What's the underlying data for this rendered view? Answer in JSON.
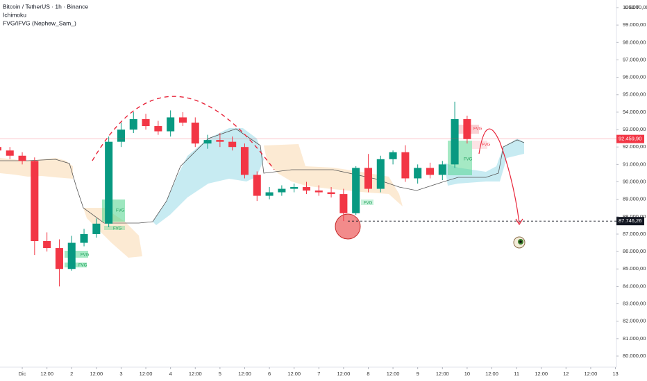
{
  "chart_data": {
    "type": "candlestick",
    "title": "Bitcoin / TetherUS · 1h · Binance",
    "indicators": [
      "Ichimoku",
      "FVG/IFVG (Nephew_Sam_)"
    ],
    "currency": "USDT",
    "up_color": "#089981",
    "down_color": "#f23645",
    "x": [
      -12,
      -6,
      0,
      6,
      12,
      18,
      24,
      30,
      36,
      42,
      48,
      54,
      60,
      66,
      72,
      78,
      84,
      90,
      96,
      102,
      108,
      114,
      120,
      126,
      132,
      138,
      144,
      150,
      156,
      162,
      168,
      174,
      180,
      186,
      192,
      198,
      204,
      210,
      216
    ],
    "open": [
      92000,
      91800,
      91500,
      91200,
      86600,
      86200,
      85000,
      86500,
      87000,
      87600,
      92300,
      93000,
      93600,
      93200,
      92900,
      93700,
      93400,
      92200,
      92400,
      92300,
      92000,
      90400,
      89200,
      89400,
      89600,
      89700,
      89500,
      89400,
      89300,
      88200,
      90800,
      89600,
      91300,
      91700,
      90200,
      90800,
      90400,
      91000,
      93600
    ],
    "high": [
      92200,
      92000,
      91700,
      91400,
      87100,
      86700,
      86900,
      87300,
      87900,
      92600,
      93400,
      94000,
      93900,
      93500,
      94100,
      94000,
      93700,
      92700,
      92800,
      92600,
      92200,
      90600,
      89700,
      89800,
      89900,
      90000,
      89800,
      89700,
      89600,
      90900,
      91600,
      91500,
      91800,
      92100,
      91000,
      91100,
      91200,
      94600,
      93800
    ],
    "low": [
      91600,
      91300,
      91000,
      85800,
      86000,
      84000,
      84900,
      86300,
      86800,
      87400,
      92000,
      92800,
      93000,
      92700,
      92600,
      93200,
      92000,
      91900,
      92000,
      91800,
      90200,
      88900,
      89000,
      89200,
      89400,
      89300,
      89200,
      89100,
      87750,
      88100,
      89400,
      89400,
      91000,
      90000,
      89900,
      90200,
      90100,
      90800,
      92200
    ],
    "close": [
      91800,
      91500,
      91200,
      86600,
      86200,
      85000,
      86500,
      87000,
      87600,
      92300,
      93000,
      93600,
      93200,
      92900,
      93700,
      93400,
      92200,
      92400,
      92300,
      92000,
      90400,
      89200,
      89400,
      89600,
      89700,
      89500,
      89400,
      89300,
      88200,
      90800,
      89600,
      91300,
      91700,
      90200,
      90800,
      90400,
      91000,
      93600,
      92460
    ],
    "xlim": [
      -10.8,
      288.5
    ],
    "xticks": [
      {
        "value": 0,
        "label": "Dic"
      },
      {
        "value": 12,
        "label": "12:00"
      },
      {
        "value": 24,
        "label": "2"
      },
      {
        "value": 36,
        "label": "12:00"
      },
      {
        "value": 48,
        "label": "3"
      },
      {
        "value": 60,
        "label": "12:00"
      },
      {
        "value": 72,
        "label": "4"
      },
      {
        "value": 84,
        "label": "12:00"
      },
      {
        "value": 96,
        "label": "5"
      },
      {
        "value": 108,
        "label": "12:00"
      },
      {
        "value": 120,
        "label": "6"
      },
      {
        "value": 132,
        "label": "12:00"
      },
      {
        "value": 144,
        "label": "7"
      },
      {
        "value": 156,
        "label": "12:00"
      },
      {
        "value": 168,
        "label": "8"
      },
      {
        "value": 180,
        "label": "12:00"
      },
      {
        "value": 192,
        "label": "9"
      },
      {
        "value": 204,
        "label": "12:00"
      },
      {
        "value": 216,
        "label": "10"
      },
      {
        "value": 228,
        "label": "12:00"
      },
      {
        "value": 240,
        "label": "11"
      },
      {
        "value": 252,
        "label": "12:00"
      },
      {
        "value": 264,
        "label": "12"
      },
      {
        "value": 276,
        "label": "12:00"
      },
      {
        "value": 288,
        "label": "13"
      }
    ],
    "ylim": [
      79650,
      100450
    ],
    "yticks": [
      {
        "value": 80000,
        "label": "80.000,00"
      },
      {
        "value": 81000,
        "label": "81.000,00"
      },
      {
        "value": 82000,
        "label": "82.000,00"
      },
      {
        "value": 83000,
        "label": "83.000,00"
      },
      {
        "value": 84000,
        "label": "84.000,00"
      },
      {
        "value": 85000,
        "label": "85.000,00"
      },
      {
        "value": 86000,
        "label": "86.000,00"
      },
      {
        "value": 87000,
        "label": "87.000,00"
      },
      {
        "value": 88000,
        "label": "88.000,00"
      },
      {
        "value": 89000,
        "label": "89.000,00"
      },
      {
        "value": 90000,
        "label": "90.000,00"
      },
      {
        "value": 91000,
        "label": "91.000,00"
      },
      {
        "value": 92000,
        "label": "92.000,00"
      },
      {
        "value": 93000,
        "label": "93.000,00"
      },
      {
        "value": 94000,
        "label": "94.000,00"
      },
      {
        "value": 95000,
        "label": "95.000,00"
      },
      {
        "value": 96000,
        "label": "96.000,00"
      },
      {
        "value": 97000,
        "label": "97.000,00"
      },
      {
        "value": 98000,
        "label": "98.000,00"
      },
      {
        "value": 99000,
        "label": "99.000,00"
      },
      {
        "value": 100000,
        "label": "100.000,00"
      }
    ],
    "last_price": {
      "value": 92459.9,
      "label": "92.459,90"
    },
    "level": {
      "value": 87746.26,
      "label": "87.746,26"
    },
    "annotations": [
      "FVG",
      "FVG",
      "FVG",
      "FVG",
      "FVG",
      "FVG",
      "FVG",
      "FVG"
    ]
  }
}
